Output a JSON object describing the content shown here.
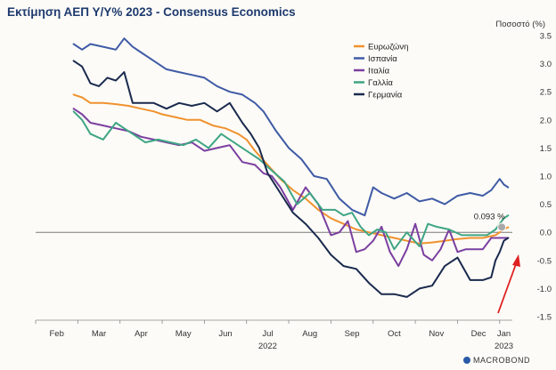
{
  "chart_data": {
    "type": "line",
    "title": "Εκτίμηση ΑΕΠ Υ/Υ% 2023 - Consensus Economics",
    "ylabel": "Ποσοστό (%)",
    "ylim": [
      -1.5,
      3.5
    ],
    "yticks": [
      3.5,
      3.0,
      2.5,
      2.0,
      1.5,
      1.0,
      0.5,
      0.0,
      -0.5,
      -1.0,
      -1.5
    ],
    "xlim": [
      0,
      11.3
    ],
    "x_ticks": [
      {
        "label": "Feb",
        "x": 0.5
      },
      {
        "label": "Mar",
        "x": 1.5
      },
      {
        "label": "Apr",
        "x": 2.5
      },
      {
        "label": "May",
        "x": 3.5
      },
      {
        "label": "Jun",
        "x": 4.5
      },
      {
        "label": "Jul",
        "x": 5.5
      },
      {
        "label": "Aug",
        "x": 6.5
      },
      {
        "label": "Sep",
        "x": 7.5
      },
      {
        "label": "Oct",
        "x": 8.5
      },
      {
        "label": "Nov",
        "x": 9.5
      },
      {
        "label": "Dec",
        "x": 10.5
      },
      {
        "label": "Jan",
        "x": 11.1
      }
    ],
    "year_labels": [
      {
        "label": "2022",
        "x": 5.5
      },
      {
        "label": "2023",
        "x": 11.1
      }
    ],
    "annotation": {
      "text": "0.093 %",
      "x": 11.05,
      "y": 0.093
    },
    "series": [
      {
        "name": "Ευρωζώνη",
        "color": "#f0922e",
        "x": [
          0.9,
          1.1,
          1.3,
          1.6,
          1.9,
          2.2,
          2.5,
          2.8,
          3.0,
          3.3,
          3.6,
          3.9,
          4.2,
          4.5,
          4.8,
          5.0,
          5.2,
          5.5,
          5.8,
          6.1,
          6.4,
          6.7,
          7.0,
          7.3,
          7.6,
          7.9,
          8.2,
          8.5,
          8.8,
          9.1,
          9.4,
          9.7,
          10.0,
          10.3,
          10.6,
          10.9,
          11.1,
          11.2
        ],
        "y": [
          2.45,
          2.4,
          2.3,
          2.3,
          2.28,
          2.25,
          2.2,
          2.15,
          2.1,
          2.05,
          2.0,
          2.0,
          1.9,
          1.85,
          1.75,
          1.65,
          1.45,
          1.2,
          0.95,
          0.75,
          0.6,
          0.4,
          0.25,
          0.15,
          0.05,
          0.0,
          -0.05,
          -0.1,
          -0.15,
          -0.2,
          -0.18,
          -0.15,
          -0.12,
          -0.1,
          -0.1,
          -0.05,
          0.05,
          0.09
        ]
      },
      {
        "name": "Ισπανία",
        "color": "#3f5ba6",
        "x": [
          0.9,
          1.1,
          1.3,
          1.6,
          1.9,
          2.1,
          2.3,
          2.5,
          2.8,
          3.1,
          3.4,
          3.7,
          4.0,
          4.3,
          4.6,
          4.9,
          5.2,
          5.4,
          5.7,
          6.0,
          6.3,
          6.6,
          6.9,
          7.2,
          7.5,
          7.8,
          8.0,
          8.2,
          8.5,
          8.8,
          9.1,
          9.4,
          9.7,
          10.0,
          10.3,
          10.6,
          10.8,
          11.0,
          11.1,
          11.2
        ],
        "y": [
          3.35,
          3.25,
          3.35,
          3.3,
          3.25,
          3.45,
          3.3,
          3.2,
          3.05,
          2.9,
          2.85,
          2.8,
          2.75,
          2.6,
          2.5,
          2.45,
          2.3,
          2.15,
          1.8,
          1.5,
          1.3,
          1.0,
          0.95,
          0.6,
          0.4,
          0.3,
          0.8,
          0.7,
          0.6,
          0.7,
          0.55,
          0.6,
          0.5,
          0.65,
          0.7,
          0.65,
          0.75,
          0.95,
          0.85,
          0.8
        ]
      },
      {
        "name": "Ιταλία",
        "color": "#7b3fa0",
        "x": [
          0.9,
          1.1,
          1.3,
          1.6,
          1.9,
          2.2,
          2.5,
          2.8,
          3.1,
          3.4,
          3.7,
          4.0,
          4.3,
          4.6,
          4.9,
          5.2,
          5.4,
          5.6,
          5.8,
          6.1,
          6.4,
          6.7,
          7.0,
          7.2,
          7.4,
          7.6,
          7.8,
          8.0,
          8.2,
          8.4,
          8.6,
          8.8,
          9.0,
          9.2,
          9.4,
          9.6,
          9.8,
          10.0,
          10.2,
          10.4,
          10.6,
          10.8,
          11.0,
          11.1,
          11.2
        ],
        "y": [
          2.2,
          2.1,
          1.95,
          1.9,
          1.85,
          1.8,
          1.7,
          1.65,
          1.6,
          1.55,
          1.6,
          1.45,
          1.5,
          1.55,
          1.25,
          1.2,
          1.05,
          1.0,
          0.8,
          0.4,
          0.8,
          0.5,
          -0.05,
          0.0,
          0.2,
          -0.35,
          -0.3,
          -0.15,
          0.1,
          -0.35,
          -0.6,
          -0.3,
          0.15,
          -0.4,
          -0.5,
          -0.3,
          0.05,
          -0.35,
          -0.3,
          -0.3,
          -0.3,
          -0.1,
          -0.1,
          -0.1,
          -0.1
        ]
      },
      {
        "name": "Γαλλία",
        "color": "#3ea584",
        "x": [
          0.9,
          1.1,
          1.3,
          1.6,
          1.9,
          2.1,
          2.3,
          2.6,
          2.9,
          3.2,
          3.5,
          3.8,
          4.1,
          4.4,
          4.7,
          5.0,
          5.3,
          5.6,
          5.9,
          6.2,
          6.5,
          6.8,
          7.1,
          7.3,
          7.5,
          7.7,
          7.9,
          8.1,
          8.3,
          8.5,
          8.8,
          9.1,
          9.3,
          9.5,
          9.8,
          10.1,
          10.4,
          10.7,
          10.9,
          11.0,
          11.1,
          11.2
        ],
        "y": [
          2.15,
          2.0,
          1.75,
          1.65,
          1.95,
          1.85,
          1.75,
          1.6,
          1.65,
          1.6,
          1.55,
          1.65,
          1.5,
          1.75,
          1.6,
          1.45,
          1.3,
          1.1,
          0.9,
          0.5,
          0.7,
          0.4,
          0.4,
          0.3,
          0.35,
          0.1,
          -0.05,
          0.05,
          0.0,
          -0.3,
          0.0,
          -0.25,
          0.15,
          0.1,
          0.05,
          -0.05,
          -0.05,
          -0.05,
          0.05,
          0.15,
          0.25,
          0.3
        ]
      },
      {
        "name": "Γερμανία",
        "color": "#1a2a4e",
        "x": [
          0.9,
          1.1,
          1.3,
          1.5,
          1.7,
          1.9,
          2.1,
          2.3,
          2.5,
          2.8,
          3.1,
          3.4,
          3.7,
          4.0,
          4.3,
          4.6,
          4.9,
          5.1,
          5.3,
          5.5,
          5.8,
          6.1,
          6.4,
          6.7,
          7.0,
          7.3,
          7.6,
          7.9,
          8.2,
          8.5,
          8.8,
          9.1,
          9.4,
          9.7,
          10.0,
          10.3,
          10.6,
          10.8,
          10.9,
          11.0,
          11.1,
          11.2
        ],
        "y": [
          3.05,
          2.95,
          2.65,
          2.6,
          2.75,
          2.7,
          2.85,
          2.3,
          2.3,
          2.3,
          2.2,
          2.3,
          2.25,
          2.3,
          2.15,
          2.3,
          1.95,
          1.75,
          1.5,
          1.05,
          0.7,
          0.35,
          0.15,
          -0.1,
          -0.4,
          -0.6,
          -0.65,
          -0.9,
          -1.1,
          -1.1,
          -1.15,
          -1.0,
          -0.95,
          -0.6,
          -0.45,
          -0.85,
          -0.85,
          -0.8,
          -0.5,
          -0.35,
          -0.15,
          -0.1
        ]
      }
    ]
  },
  "branding": {
    "logo_text": "MACROBOND"
  }
}
